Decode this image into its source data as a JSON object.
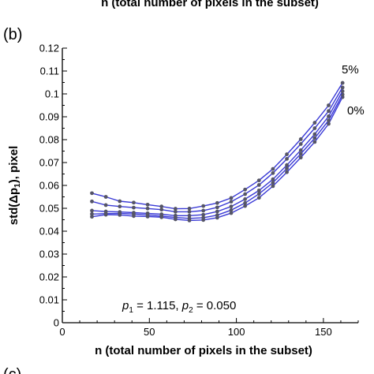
{
  "top_cut_caption": "n (total number of pixels in the subset)",
  "panel_label": "(b)",
  "next_panel_label": "(c)",
  "chart_data": {
    "type": "line",
    "xlabel": "n (total number of pixels in the subset)",
    "ylabel": "std(Δp₁), pixel",
    "ylabel_main": "std(Δp",
    "ylabel_sub": "1",
    "ylabel_tail": "), pixel",
    "xlim": [
      0,
      170
    ],
    "ylim": [
      0,
      0.12
    ],
    "xticks": [
      0,
      50,
      100,
      150
    ],
    "yticks": [
      0,
      0.01,
      0.02,
      0.03,
      0.04,
      0.05,
      0.06,
      0.07,
      0.08,
      0.09,
      0.1,
      0.11,
      0.12
    ],
    "ytick_labels": [
      "0",
      "0.01",
      "0.02",
      "0.03",
      "0.04",
      "0.05",
      "0.06",
      "0.07",
      "0.08",
      "0.09",
      "0.1",
      "0.11",
      "0.12"
    ],
    "grid": false,
    "line_color": "#3a3ad6",
    "marker_color": "#555566",
    "x": [
      17,
      25,
      33,
      41,
      49,
      57,
      65,
      73,
      81,
      89,
      97,
      105,
      113,
      121,
      129,
      137,
      145,
      153,
      161
    ],
    "series": [
      {
        "values": [
          0.0463,
          0.0472,
          0.0471,
          0.0466,
          0.0464,
          0.0461,
          0.0452,
          0.0447,
          0.0449,
          0.0459,
          0.0479,
          0.051,
          0.0546,
          0.0597,
          0.0658,
          0.0722,
          0.079,
          0.0869,
          0.0986
        ]
      },
      {
        "values": [
          0.0475,
          0.0477,
          0.0478,
          0.0475,
          0.0471,
          0.0466,
          0.046,
          0.0456,
          0.0459,
          0.047,
          0.0492,
          0.0523,
          0.0563,
          0.0612,
          0.0674,
          0.0738,
          0.0807,
          0.0884,
          0.0997
        ]
      },
      {
        "values": [
          0.049,
          0.0486,
          0.0484,
          0.0481,
          0.0478,
          0.0474,
          0.0468,
          0.0468,
          0.0472,
          0.0486,
          0.0508,
          0.054,
          0.0578,
          0.0627,
          0.0689,
          0.0754,
          0.0824,
          0.0902,
          0.1012
        ]
      },
      {
        "values": [
          0.053,
          0.0514,
          0.0508,
          0.0503,
          0.0499,
          0.0494,
          0.0485,
          0.0485,
          0.049,
          0.0504,
          0.0529,
          0.0562,
          0.0602,
          0.0654,
          0.0716,
          0.0781,
          0.085,
          0.0925,
          0.1028
        ]
      },
      {
        "values": [
          0.0566,
          0.055,
          0.0531,
          0.0525,
          0.0516,
          0.0508,
          0.0498,
          0.0499,
          0.051,
          0.0523,
          0.0545,
          0.0582,
          0.0622,
          0.0672,
          0.0736,
          0.0802,
          0.0874,
          0.095,
          0.1048
        ]
      }
    ],
    "annotations": {
      "top_series": "5%",
      "bottom_series": "0%",
      "params_p1_sym": "p",
      "params_p1_sub": "1",
      "params_p1_val": " = 1.115, ",
      "params_p2_sym": "p",
      "params_p2_sub": "2",
      "params_p2_val": " = 0.050"
    }
  }
}
